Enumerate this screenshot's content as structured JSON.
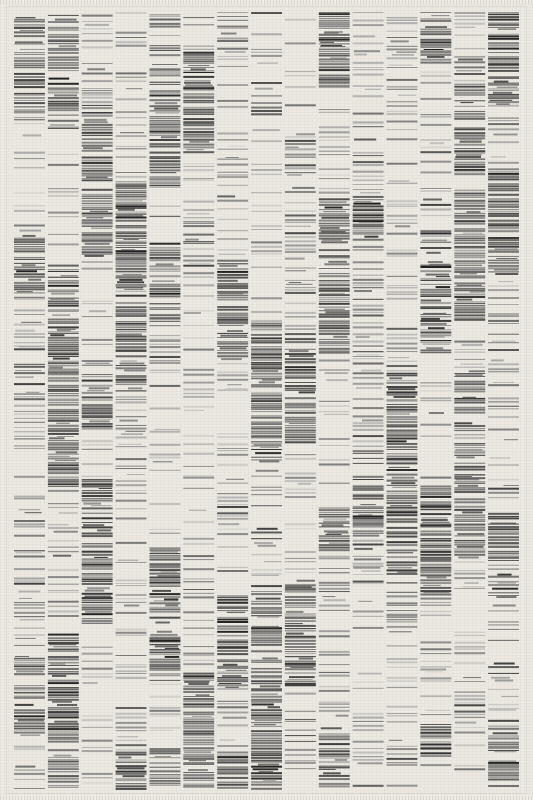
{
  "rug": {
    "background_color": "#ece9e2",
    "stripe_tones": [
      "#1f1f1f",
      "#3a3a3a",
      "#555555",
      "#707070",
      "#8c8c8c",
      "#a8a8a8",
      "#c4c2bd"
    ],
    "column_count": 15
  }
}
